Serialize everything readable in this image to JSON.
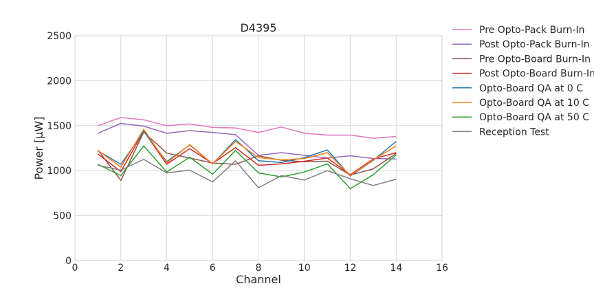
{
  "chart_data": {
    "type": "line",
    "title": "D4395",
    "xlabel": "Channel",
    "ylabel": "Power [μW]",
    "xlim": [
      0,
      16
    ],
    "ylim": [
      0,
      2500
    ],
    "xticks": [
      0,
      2,
      4,
      6,
      8,
      10,
      12,
      14,
      16
    ],
    "yticks": [
      0,
      500,
      1000,
      1500,
      2000,
      2500
    ],
    "grid": true,
    "legend_position": "outside-right",
    "x": [
      1,
      2,
      3,
      4,
      5,
      6,
      7,
      8,
      9,
      10,
      11,
      12,
      13,
      14
    ],
    "series": [
      {
        "name": "Pre Opto-Pack Burn-In",
        "color": "#e377c2",
        "values": [
          1500,
          1590,
          1565,
          1500,
          1520,
          1480,
          1475,
          1425,
          1485,
          1415,
          1395,
          1395,
          1360,
          1380
        ]
      },
      {
        "name": "Post Opto-Pack Burn-In",
        "color": "#9467bd",
        "values": [
          1415,
          1525,
          1495,
          1415,
          1445,
          1425,
          1400,
          1170,
          1200,
          1170,
          1140,
          1165,
          1135,
          1130
        ]
      },
      {
        "name": "Pre Opto-Board Burn-In",
        "color": "#8c564b",
        "values": [
          1230,
          890,
          1430,
          1195,
          1140,
          1085,
          1070,
          1165,
          1115,
          1100,
          1105,
          950,
          1020,
          1190
        ]
      },
      {
        "name": "Post Opto-Board Burn-In",
        "color": "#d62728",
        "values": [
          1185,
          990,
          1440,
          1070,
          1245,
          1080,
          1255,
          1060,
          1075,
          1105,
          1140,
          955,
          1130,
          1200
        ]
      },
      {
        "name": "Opto-Board QA at 0 C",
        "color": "#1f77b4",
        "values": [
          1220,
          1070,
          1435,
          1100,
          1285,
          1075,
          1345,
          1110,
          1090,
          1145,
          1230,
          940,
          1115,
          1325
        ]
      },
      {
        "name": "Opto-Board QA at 10 C",
        "color": "#ff7f0e",
        "values": [
          1225,
          1040,
          1460,
          1085,
          1290,
          1075,
          1325,
          1145,
          1120,
          1135,
          1200,
          945,
          1120,
          1275
        ]
      },
      {
        "name": "Opto-Board QA at 50 C",
        "color": "#2ca02c",
        "values": [
          1070,
          945,
          1275,
          985,
          1150,
          960,
          1225,
          975,
          930,
          985,
          1075,
          800,
          955,
          1175
        ]
      },
      {
        "name": "Reception Test",
        "color": "#7f7f7f",
        "values": [
          1060,
          1005,
          1125,
          975,
          1005,
          875,
          1110,
          810,
          945,
          895,
          1000,
          910,
          835,
          905
        ]
      }
    ]
  }
}
